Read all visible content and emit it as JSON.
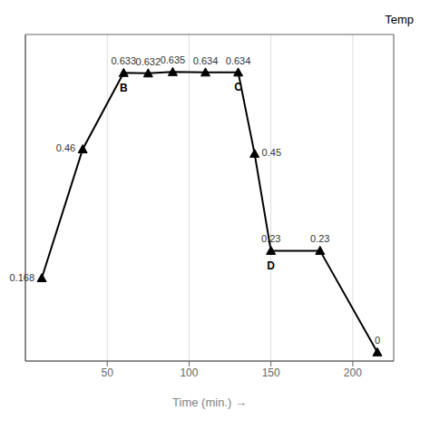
{
  "chart_data": {
    "type": "line",
    "x": [
      10,
      35,
      60,
      75,
      90,
      110,
      130,
      140,
      150,
      180,
      215
    ],
    "values": [
      0.168,
      0.46,
      0.633,
      0.632,
      0.635,
      0.634,
      0.634,
      0.45,
      0.23,
      0.23,
      0.0
    ],
    "xlim": [
      0,
      225
    ],
    "ylim": [
      -0.02,
      0.72
    ],
    "xticks": [
      50,
      100,
      150,
      200
    ],
    "yticks": [],
    "xlabel": "Time (min.) →",
    "grid": true,
    "tick_labels": "x",
    "data_labels": true,
    "color": "black",
    "marker": "triangle",
    "annotations": [
      {
        "text": "B",
        "x": 60,
        "y": 0.633
      },
      {
        "text": "C",
        "x": 130,
        "y": 0.634
      },
      {
        "text": "D",
        "x": 150,
        "y": 0.23
      },
      {
        "text": "Temp"
      }
    ]
  }
}
